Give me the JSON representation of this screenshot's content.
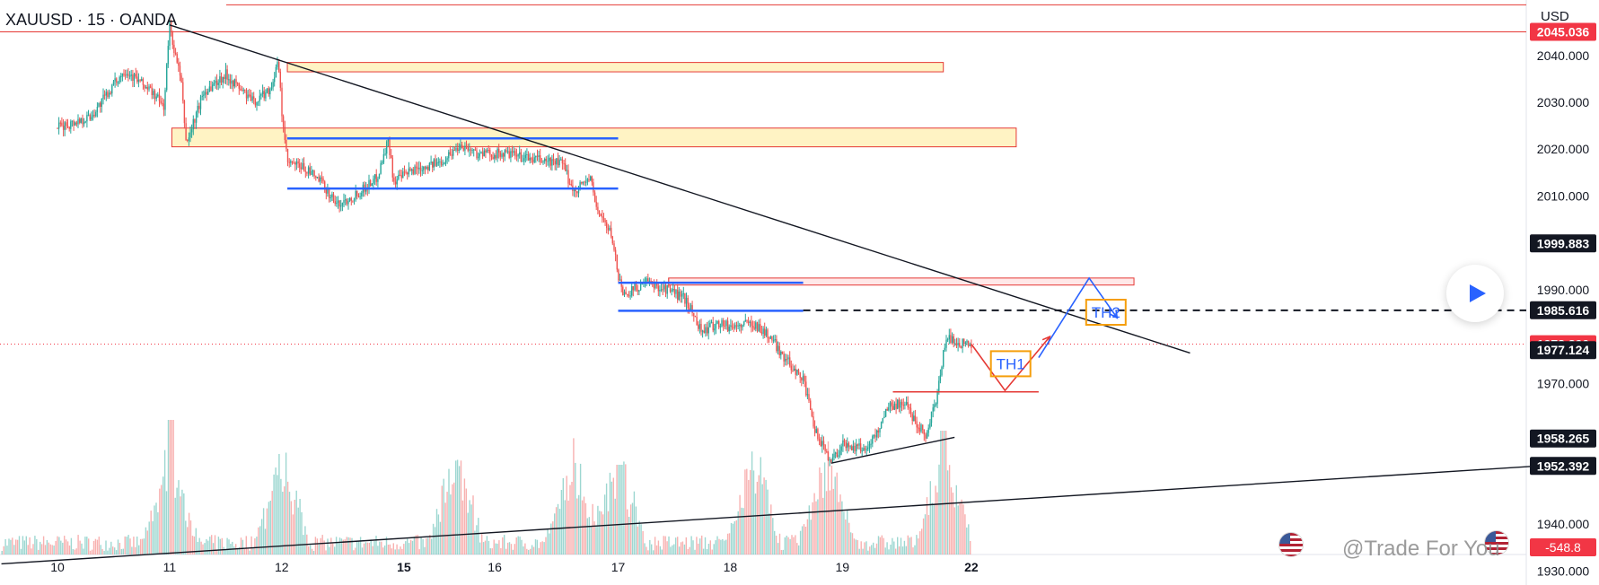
{
  "header": {
    "symbol_title": "XAUUSD · 15 · OANDA",
    "currency": "USD"
  },
  "watermark": "@Trade For You",
  "colors": {
    "up": "#26a69a",
    "down": "#ef5350",
    "support_line": "#2962ff",
    "zone_fill": "#fff3c4",
    "zone_border": "#e53935",
    "label_dark": "#131722",
    "label_red": "#f23645",
    "annotation_box": "#f59e0b"
  },
  "icons": [
    "play-icon",
    "us-flag-icon"
  ],
  "chart_data": {
    "type": "candlestick",
    "title": "XAUUSD · 15 · OANDA",
    "x_tick_labels": [
      "10",
      "11",
      "12",
      "15",
      "16",
      "17",
      "18",
      "19",
      "22"
    ],
    "y_range": [
      1933.5,
      2048
    ],
    "y_tick_values": [
      2040,
      2030,
      2020,
      2010,
      1990,
      1970,
      1940,
      1930
    ],
    "y_tick_labels": [
      "2040.000",
      "2030.000",
      "2020.000",
      "2010.000",
      "1990.000",
      "1970.000",
      "1940.000",
      "1930.000"
    ],
    "price_tags": [
      {
        "value": 2045.036,
        "label": "2045.036",
        "style": "red"
      },
      {
        "value": 1999.883,
        "label": "1999.883",
        "style": "dark"
      },
      {
        "value": 1985.616,
        "label": "1985.616",
        "style": "dark"
      },
      {
        "value": 1978.39,
        "label": "1978.390",
        "style": "red"
      },
      {
        "value": 1977.124,
        "label": "1977.124",
        "style": "dark"
      },
      {
        "value": 1958.265,
        "label": "1958.265",
        "style": "dark"
      },
      {
        "value": 1952.392,
        "label": "1952.392",
        "style": "dark"
      }
    ],
    "volume_tag": "-548.8",
    "current_price": 1978.39,
    "dashed_level": 1985.616,
    "price_path": [
      [
        0,
        2024.5
      ],
      [
        0.3,
        2027
      ],
      [
        0.6,
        2037
      ],
      [
        0.85,
        2032
      ],
      [
        0.95,
        2029
      ],
      [
        1.0,
        2046.5
      ],
      [
        1.05,
        2040
      ],
      [
        1.1,
        2035
      ],
      [
        1.15,
        2021
      ],
      [
        1.3,
        2032
      ],
      [
        1.5,
        2036
      ],
      [
        1.75,
        2030
      ],
      [
        1.9,
        2033
      ],
      [
        1.97,
        2038.5
      ],
      [
        2.0,
        2028
      ],
      [
        2.05,
        2017
      ],
      [
        2.2,
        2016
      ],
      [
        2.35,
        2013
      ],
      [
        2.5,
        2008
      ],
      [
        2.7,
        2011
      ],
      [
        2.85,
        2014
      ],
      [
        2.95,
        2022
      ],
      [
        3.0,
        2013
      ],
      [
        3.2,
        2016
      ],
      [
        3.4,
        2017
      ],
      [
        3.6,
        2021
      ],
      [
        3.75,
        2019
      ],
      [
        4.0,
        2019
      ],
      [
        4.2,
        2018
      ],
      [
        4.5,
        2017
      ],
      [
        4.6,
        2011
      ],
      [
        4.75,
        2014
      ],
      [
        4.8,
        2008
      ],
      [
        4.95,
        2001
      ],
      [
        5.0,
        1993
      ],
      [
        5.05,
        1989
      ],
      [
        5.25,
        1991.5
      ],
      [
        5.45,
        1990
      ],
      [
        5.6,
        1988
      ],
      [
        5.75,
        1981
      ],
      [
        5.9,
        1983
      ],
      [
        6.0,
        1982
      ],
      [
        6.2,
        1983
      ],
      [
        6.35,
        1980
      ],
      [
        6.5,
        1975
      ],
      [
        6.65,
        1971
      ],
      [
        6.75,
        1960
      ],
      [
        6.9,
        1953.5
      ],
      [
        7.0,
        1957
      ],
      [
        7.2,
        1956
      ],
      [
        7.3,
        1959
      ],
      [
        7.4,
        1965
      ],
      [
        7.55,
        1966
      ],
      [
        7.65,
        1962
      ],
      [
        7.75,
        1959
      ],
      [
        7.85,
        1968
      ],
      [
        7.9,
        1977
      ],
      [
        7.95,
        1980
      ],
      [
        8.0,
        1978.8
      ],
      [
        8.1,
        1978.5
      ],
      [
        8.15,
        1978.4
      ]
    ],
    "zones": [
      {
        "x1": 2.05,
        "x2": 7.9,
        "y1": 2038.5,
        "y2": 2036.5,
        "style": "supply"
      },
      {
        "x1": 1.02,
        "x2": 8.55,
        "y1": 2024.5,
        "y2": 2020.5,
        "style": "supply"
      },
      {
        "x1": 5.45,
        "x2": 9.6,
        "y1": 1992.5,
        "y2": 1991.0,
        "style": "supply-thin"
      }
    ],
    "support_lines": [
      {
        "x1": 2.05,
        "x2": 5.0,
        "y": 2022.3
      },
      {
        "x1": 2.05,
        "x2": 5.0,
        "y": 2011.6
      },
      {
        "x1": 5.0,
        "x2": 6.65,
        "y": 1991.5
      },
      {
        "x1": 5.0,
        "x2": 6.65,
        "y": 1985.5
      }
    ],
    "red_levels": [
      {
        "x1": 7.45,
        "x2": 8.75,
        "y": 1968.2
      }
    ],
    "trendlines": [
      {
        "x1": 1.0,
        "y1": 2046.5,
        "x2": 10.1,
        "y2": 1976.5
      },
      {
        "x1": -0.5,
        "y1": 1931.5,
        "x2": 13.6,
        "y2": 1953.0
      },
      {
        "x1": 6.9,
        "y1": 1953.0,
        "x2": 8.0,
        "y2": 1958.5
      }
    ],
    "projections": [
      {
        "color": "red",
        "points": [
          [
            8.15,
            1978.4
          ],
          [
            8.45,
            1968.5
          ],
          [
            8.85,
            1980
          ]
        ]
      },
      {
        "color": "blue",
        "points": [
          [
            8.75,
            1975.5
          ],
          [
            9.2,
            1992.5
          ],
          [
            9.45,
            1984
          ]
        ]
      }
    ],
    "annotations": [
      {
        "label": "TH1",
        "x": 8.5,
        "y": 1974.2
      },
      {
        "label": "TH2",
        "x": 9.35,
        "y": 1985.2
      }
    ],
    "volume_bars_note": "volume histogram along bottom"
  }
}
